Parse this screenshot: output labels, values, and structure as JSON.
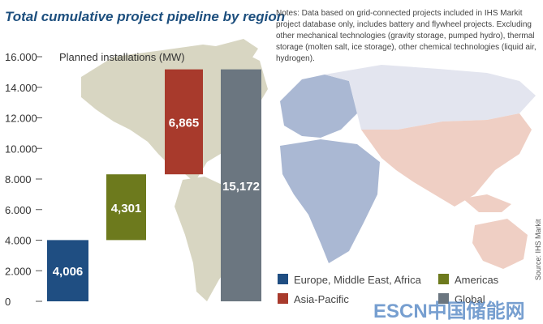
{
  "chart_data": {
    "type": "bar",
    "title": "Total cumulative project pipeline by region",
    "ylabel": "Planned installations (MW)",
    "notes": "Notes: Data based on grid-connected projects included in IHS Markit project database only, includes battery and flywheel projects. Excluding other mechanical technologies (gravity storage, pumped hydro), thermal storage (molten salt, ice storage), other chemical technologies (liquid air, hydrogen).",
    "source": "Source: IHS Markit",
    "watermark": "ESCN中国储能网",
    "ylim": [
      0,
      16000
    ],
    "y_ticks": [
      0,
      2000,
      4000,
      6000,
      8000,
      10000,
      12000,
      14000,
      16000
    ],
    "y_tick_labels": [
      "0",
      "2.000",
      "4.000",
      "6.000",
      "8.000",
      "10.000",
      "12.000",
      "14.000",
      "16.000"
    ],
    "series": [
      {
        "name": "Europe, Middle East, Africa",
        "base": 0,
        "value": 4006,
        "label": "4,006",
        "color": "#1f4e82"
      },
      {
        "name": "Americas",
        "base": 4006,
        "value": 4301,
        "label": "4,301",
        "color": "#6d7a1d"
      },
      {
        "name": "Asia-Pacific",
        "base": 8307,
        "value": 6865,
        "label": "6,865",
        "color": "#a83a2c"
      },
      {
        "name": "Global",
        "base": 0,
        "value": 15172,
        "label": "15,172",
        "color": "#6b7680"
      }
    ]
  }
}
